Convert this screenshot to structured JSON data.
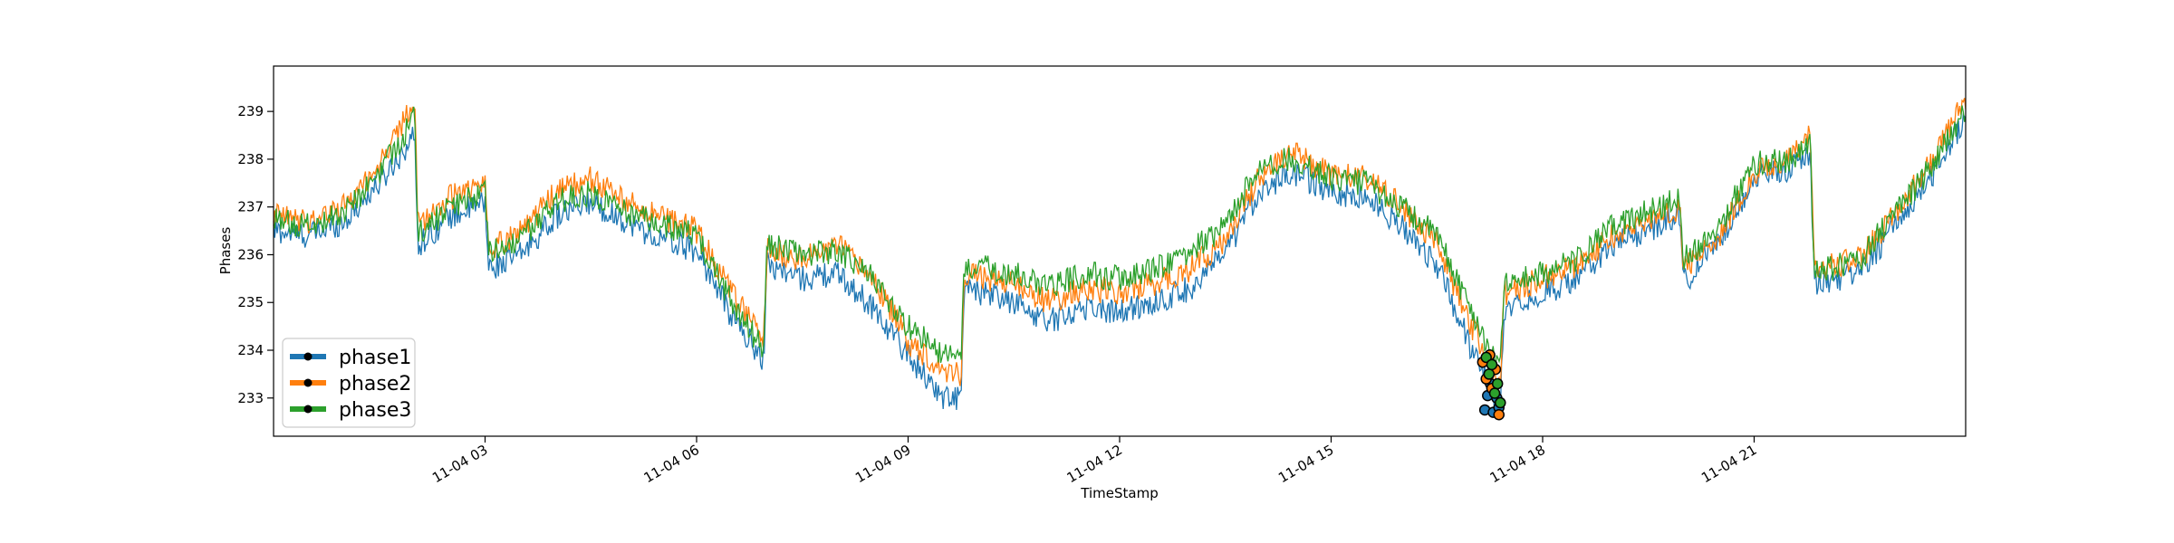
{
  "chart_data": {
    "type": "line",
    "title": "",
    "xlabel": "TimeStamp",
    "ylabel": "Phases",
    "x_unit": "hours on 11-04",
    "xlim": [
      0,
      24
    ],
    "ylim": [
      232.2,
      239.95
    ],
    "x_ticks": [
      {
        "value": 3,
        "label": "11-04 03"
      },
      {
        "value": 6,
        "label": "11-04 06"
      },
      {
        "value": 9,
        "label": "11-04 09"
      },
      {
        "value": 12,
        "label": "11-04 12"
      },
      {
        "value": 15,
        "label": "11-04 15"
      },
      {
        "value": 18,
        "label": "11-04 18"
      },
      {
        "value": 21,
        "label": "11-04 21"
      }
    ],
    "y_ticks": [
      {
        "value": 233,
        "label": "233"
      },
      {
        "value": 234,
        "label": "234"
      },
      {
        "value": 235,
        "label": "235"
      },
      {
        "value": 236,
        "label": "236"
      },
      {
        "value": 237,
        "label": "237"
      },
      {
        "value": 238,
        "label": "238"
      },
      {
        "value": 239,
        "label": "239"
      }
    ],
    "grid": false,
    "legend_position": "lower-left",
    "series": [
      {
        "name": "phase1",
        "color": "#1f77b4",
        "marker": "dot",
        "marker_color": "#000000",
        "x": [
          0,
          0.5,
          1.0,
          1.5,
          2.0,
          2.05,
          2.5,
          3.0,
          3.05,
          3.5,
          4.0,
          4.5,
          5.0,
          5.5,
          6.0,
          6.5,
          6.95,
          7.0,
          7.5,
          8.0,
          8.5,
          9.0,
          9.5,
          9.75,
          9.8,
          10.5,
          11.0,
          11.5,
          12.0,
          12.5,
          13.0,
          13.5,
          14.0,
          14.5,
          15.0,
          15.5,
          16.0,
          16.5,
          17.0,
          17.4,
          17.45,
          18.0,
          18.5,
          19.0,
          19.5,
          19.95,
          20.0,
          20.5,
          21.0,
          21.5,
          21.8,
          21.85,
          22.5,
          23.0,
          23.5,
          24.0
        ],
        "y": [
          236.5,
          236.4,
          236.7,
          237.5,
          238.5,
          236.2,
          236.8,
          237.1,
          235.7,
          236.0,
          236.8,
          237.1,
          236.7,
          236.3,
          236.1,
          234.7,
          233.8,
          235.8,
          235.5,
          235.6,
          234.9,
          233.9,
          233.0,
          233.0,
          235.3,
          235.0,
          234.6,
          234.9,
          234.8,
          235.0,
          235.3,
          236.0,
          237.4,
          237.7,
          237.3,
          237.2,
          236.6,
          235.8,
          234.0,
          232.7,
          234.9,
          235.2,
          235.5,
          236.2,
          236.5,
          236.9,
          235.4,
          236.3,
          237.6,
          237.8,
          238.1,
          235.4,
          235.6,
          236.6,
          237.6,
          238.9
        ],
        "highlight_points": [
          {
            "x": 17.18,
            "y": 232.75
          },
          {
            "x": 17.22,
            "y": 233.05
          },
          {
            "x": 17.26,
            "y": 233.3
          },
          {
            "x": 17.3,
            "y": 232.7
          },
          {
            "x": 17.35,
            "y": 233.0
          },
          {
            "x": 17.38,
            "y": 232.8
          }
        ]
      },
      {
        "name": "phase2",
        "color": "#ff7f0e",
        "marker": "dot",
        "marker_color": "#000000",
        "x": [
          0,
          0.5,
          1.0,
          1.5,
          2.0,
          2.05,
          2.5,
          3.0,
          3.05,
          3.5,
          4.0,
          4.5,
          5.0,
          5.5,
          6.0,
          6.5,
          6.95,
          7.0,
          7.5,
          8.0,
          8.5,
          9.0,
          9.5,
          9.75,
          9.8,
          10.5,
          11.0,
          11.5,
          12.0,
          12.5,
          13.0,
          13.5,
          14.0,
          14.5,
          15.0,
          15.5,
          16.0,
          16.5,
          17.0,
          17.4,
          17.45,
          18.0,
          18.5,
          19.0,
          19.5,
          19.95,
          20.0,
          20.5,
          21.0,
          21.5,
          21.8,
          21.85,
          22.5,
          23.0,
          23.5,
          24.0
        ],
        "y": [
          236.8,
          236.7,
          237.0,
          237.9,
          239.2,
          236.6,
          237.2,
          237.5,
          236.1,
          236.5,
          237.3,
          237.6,
          237.1,
          236.8,
          236.5,
          235.2,
          234.2,
          236.1,
          235.9,
          236.2,
          235.5,
          234.2,
          233.6,
          233.5,
          235.6,
          235.4,
          235.0,
          235.3,
          235.2,
          235.4,
          235.7,
          236.3,
          237.7,
          238.1,
          237.7,
          237.6,
          237.0,
          236.2,
          234.5,
          233.3,
          235.2,
          235.5,
          235.8,
          236.4,
          236.7,
          237.0,
          235.7,
          236.4,
          237.7,
          238.0,
          238.5,
          235.7,
          235.9,
          236.9,
          237.9,
          239.3
        ],
        "highlight_points": [
          {
            "x": 17.15,
            "y": 233.75
          },
          {
            "x": 17.2,
            "y": 233.4
          },
          {
            "x": 17.25,
            "y": 233.9
          },
          {
            "x": 17.28,
            "y": 233.2
          },
          {
            "x": 17.33,
            "y": 233.6
          },
          {
            "x": 17.38,
            "y": 232.65
          }
        ]
      },
      {
        "name": "phase3",
        "color": "#2ca02c",
        "marker": "dot",
        "marker_color": "#000000",
        "x": [
          0,
          0.5,
          1.0,
          1.5,
          2.0,
          2.05,
          2.5,
          3.0,
          3.05,
          3.5,
          4.0,
          4.5,
          5.0,
          5.5,
          6.0,
          6.5,
          6.95,
          7.0,
          7.5,
          8.0,
          8.5,
          9.0,
          9.5,
          9.75,
          9.8,
          10.5,
          11.0,
          11.5,
          12.0,
          12.5,
          13.0,
          13.5,
          14.0,
          14.5,
          15.0,
          15.5,
          16.0,
          16.5,
          17.0,
          17.4,
          17.45,
          18.0,
          18.5,
          19.0,
          19.5,
          19.95,
          20.0,
          20.5,
          21.0,
          21.5,
          21.8,
          21.85,
          22.5,
          23.0,
          23.5,
          24.0
        ],
        "y": [
          236.7,
          236.6,
          236.9,
          237.7,
          238.9,
          236.4,
          237.0,
          237.3,
          236.0,
          236.3,
          237.1,
          237.3,
          236.9,
          236.6,
          236.4,
          235.0,
          234.0,
          236.2,
          236.0,
          236.1,
          235.5,
          234.5,
          233.9,
          233.8,
          235.8,
          235.6,
          235.3,
          235.6,
          235.5,
          235.7,
          236.1,
          236.6,
          237.9,
          238.0,
          237.6,
          237.5,
          237.0,
          236.4,
          234.8,
          233.6,
          235.4,
          235.6,
          235.9,
          236.6,
          236.9,
          237.2,
          235.9,
          236.6,
          237.9,
          238.0,
          238.3,
          235.6,
          235.9,
          236.9,
          237.8,
          239.0
        ],
        "highlight_points": [
          {
            "x": 17.2,
            "y": 233.85
          },
          {
            "x": 17.24,
            "y": 233.5
          },
          {
            "x": 17.28,
            "y": 233.7
          },
          {
            "x": 17.32,
            "y": 233.1
          },
          {
            "x": 17.36,
            "y": 233.3
          },
          {
            "x": 17.4,
            "y": 232.9
          }
        ]
      }
    ]
  }
}
